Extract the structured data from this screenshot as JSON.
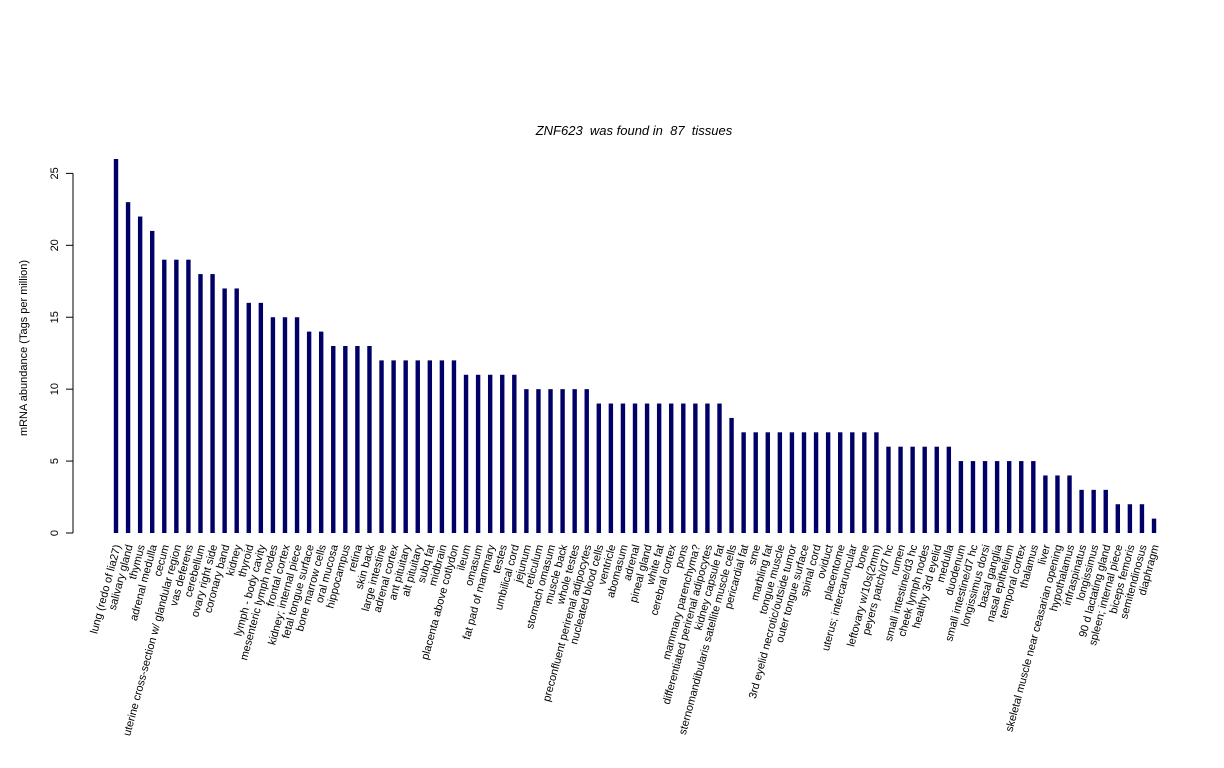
{
  "chart_data": {
    "type": "bar",
    "title": "ZNF623  was found in  87  tissues",
    "y_label": "mRNA abundance (Tags per million)",
    "color": "#000066",
    "ylim": [
      0,
      26
    ],
    "yticks": [
      0,
      5,
      10,
      15,
      20,
      25
    ],
    "grid": false,
    "categories": [
      "lung (redo of lia27)",
      "salivary gland",
      "thymus",
      "adrenal medulla",
      "cecum",
      "uterine cross-section w/ glandular region",
      "vas deferens",
      "cerebellum",
      "ovary right side",
      "coronary band",
      "kidney",
      "thyroid",
      "lymph - body cavity",
      "mesenteric lymph nodes",
      "frontal cortex",
      "kidney; internal piece",
      "fetal tongue surface",
      "bone marrow cells",
      "oral mucosa",
      "hippocampus",
      "retina",
      "skin back",
      "large intestine",
      "adrenal cortex",
      "ant pituitary",
      "alt pituitary",
      "subq fat",
      "midbrain",
      "placenta above cotlydon",
      "ileum",
      "omasum",
      "fat pad of mammary",
      "testes",
      "umbilical cord",
      "jejunum",
      "reticulum",
      "stomach omasum",
      "muscle back",
      "whole testes",
      "preconfluent perirenal adipocytes",
      "nucleated blood cells",
      "ventricle",
      "abomasum",
      "adrenal",
      "pineal gland",
      "white fat",
      "cerebral cortex",
      "pons",
      "mammary parenchyma?",
      "differentiated perirenal adipocytes",
      "kidney capsule fat",
      "sternomandibularis satellite muscle cells",
      "pericardial fat",
      "sme",
      "marbling fat",
      "tongue muscle",
      "3rd eyelid necrotic/outside tumor",
      "outer tongue surface",
      "spinal cord",
      "oviduct",
      "placentome",
      "uterus; intercaruncular",
      "bone",
      "leftovary w/10s(2mm)",
      "peyers patch/d7 hc",
      "rumen",
      "small intestine/d3 hc",
      "cheek lymph nodes",
      "healthy 3rd eyelid",
      "medulla",
      "duodenum",
      "small intestine/d7 hc",
      "longissimus dorsi",
      "basal ganglia",
      "nasal epithelium",
      "temporal cortex",
      "thalamus",
      "liver",
      "skeletal muscle near ceasarian opening",
      "hypothalamus",
      "infraspinatus",
      "longissimus",
      "90 d lactating gland",
      "spleen; internal piece",
      "biceps femoris",
      "semitendinosus",
      "diaphragm"
    ],
    "values": [
      26,
      23,
      22,
      21,
      19,
      19,
      19,
      18,
      18,
      17,
      17,
      16,
      16,
      15,
      15,
      15,
      14,
      14,
      13,
      13,
      13,
      13,
      12,
      12,
      12,
      12,
      12,
      12,
      12,
      11,
      11,
      11,
      11,
      11,
      10,
      10,
      10,
      10,
      10,
      10,
      9,
      9,
      9,
      9,
      9,
      9,
      9,
      9,
      9,
      9,
      9,
      8,
      7,
      7,
      7,
      7,
      7,
      7,
      7,
      7,
      7,
      7,
      7,
      7,
      6,
      6,
      6,
      6,
      6,
      6,
      5,
      5,
      5,
      5,
      5,
      5,
      5,
      4,
      4,
      4,
      3,
      3,
      3,
      2,
      2,
      2,
      1
    ]
  }
}
